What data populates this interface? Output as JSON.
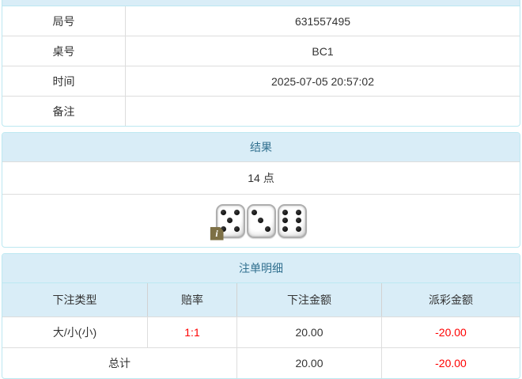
{
  "colors": {
    "accent_bg": "#d9edf7",
    "accent_border": "#bce8f1",
    "accent_text": "#31708f",
    "row_border": "#dddddd",
    "text": "#333333",
    "negative": "#ff0000",
    "info_badge_bg": "#7d7045"
  },
  "info_table": {
    "rows": [
      {
        "label": "局号",
        "value": "631557495"
      },
      {
        "label": "桌号",
        "value": "BC1"
      },
      {
        "label": "时间",
        "value": "2025-07-05 20:57:02"
      },
      {
        "label": "备注",
        "value": ""
      }
    ]
  },
  "result_panel": {
    "title": "结果",
    "points_text": "14 点",
    "dice": [
      5,
      3,
      6
    ],
    "info_icon_glyph": "i"
  },
  "bets_panel": {
    "title": "注单明细",
    "columns": [
      "下注类型",
      "赔率",
      "下注金额",
      "派彩金额"
    ],
    "rows": [
      {
        "type": "大/小(小)",
        "odds": "1:1",
        "amount": "20.00",
        "payout": "-20.00"
      }
    ],
    "total": {
      "label": "总计",
      "amount": "20.00",
      "payout": "-20.00"
    }
  }
}
